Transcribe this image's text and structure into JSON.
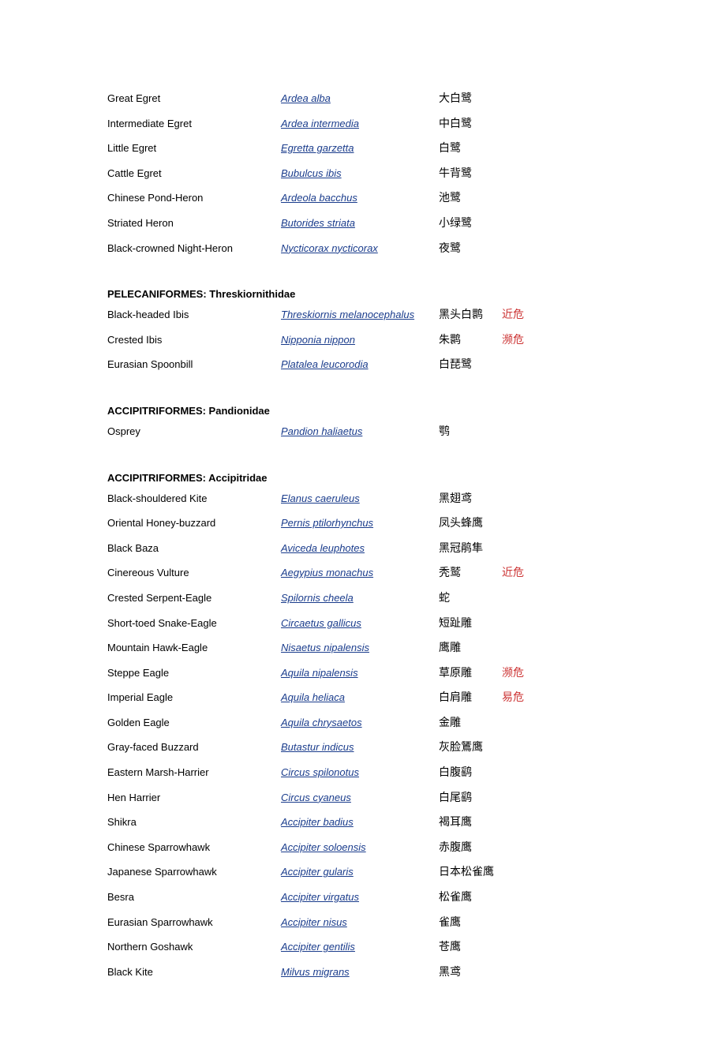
{
  "sections": [
    {
      "header": "",
      "rows": [
        {
          "common": "Great Egret",
          "sci": "Ardea alba",
          "cn": "大白鹭",
          "status": ""
        },
        {
          "common": "Intermediate Egret",
          "sci": "Ardea intermedia",
          "cn": "中白鹭",
          "status": ""
        },
        {
          "common": "Little Egret",
          "sci": "Egretta garzetta",
          "cn": "白鹭",
          "status": ""
        },
        {
          "common": "Cattle Egret",
          "sci": "Bubulcus ibis",
          "cn": "牛背鹭",
          "status": ""
        },
        {
          "common": "Chinese Pond-Heron",
          "sci": "Ardeola bacchus",
          "cn": "池鹭",
          "status": ""
        },
        {
          "common": "Striated Heron",
          "sci": "Butorides striata",
          "cn": "小绿鹭",
          "status": ""
        },
        {
          "common": "Black-crowned Night-Heron",
          "sci": "Nycticorax nycticorax",
          "cn": "夜鹭",
          "status": ""
        }
      ]
    },
    {
      "header": "PELECANIFORMES: Threskiornithidae",
      "rows": [
        {
          "common": "Black-headed Ibis",
          "sci": "Threskiornis melanocephalus",
          "cn": "黑头白鹮",
          "status": "近危"
        },
        {
          "common": "Crested Ibis",
          "sci": "Nipponia nippon",
          "cn": "朱鹮",
          "status": "濒危"
        },
        {
          "common": "Eurasian Spoonbill",
          "sci": "Platalea leucorodia",
          "cn": "白琵鹭",
          "status": ""
        }
      ]
    },
    {
      "header": "ACCIPITRIFORMES: Pandionidae",
      "rows": [
        {
          "common": "Osprey",
          "sci": "Pandion haliaetus",
          "cn": "鹗",
          "status": ""
        }
      ]
    },
    {
      "header": "ACCIPITRIFORMES: Accipitridae",
      "rows": [
        {
          "common": "Black-shouldered Kite",
          "sci": "Elanus caeruleus",
          "cn": "黑翅鸢",
          "status": ""
        },
        {
          "common": "Oriental Honey-buzzard",
          "sci": "Pernis ptilorhynchus",
          "cn": "凤头蜂鹰",
          "status": ""
        },
        {
          "common": "Black Baza",
          "sci": "Aviceda leuphotes",
          "cn": "黑冠鹃隼",
          "status": ""
        },
        {
          "common": "Cinereous Vulture",
          "sci": "Aegypius monachus",
          "cn": "秃鹫",
          "status": "近危"
        },
        {
          "common": "Crested Serpent-Eagle",
          "sci": "Spilornis cheela",
          "cn": "蛇",
          "status": ""
        },
        {
          "common": "Short-toed Snake-Eagle",
          "sci": "Circaetus gallicus",
          "cn": "短趾雕",
          "status": ""
        },
        {
          "common": "Mountain Hawk-Eagle",
          "sci": "Nisaetus nipalensis",
          "cn": "鹰雕",
          "status": ""
        },
        {
          "common": "Steppe Eagle",
          "sci": "Aquila nipalensis",
          "cn": "草原雕",
          "status": "濒危"
        },
        {
          "common": "Imperial Eagle",
          "sci": "Aquila heliaca",
          "cn": "白肩雕",
          "status": "易危"
        },
        {
          "common": "Golden Eagle",
          "sci": "Aquila chrysaetos",
          "cn": "金雕",
          "status": ""
        },
        {
          "common": "Gray-faced Buzzard",
          "sci": "Butastur indicus",
          "cn": "灰脸鵟鹰",
          "status": ""
        },
        {
          "common": "Eastern Marsh-Harrier",
          "sci": "Circus spilonotus",
          "cn": "白腹鹞",
          "status": ""
        },
        {
          "common": "Hen Harrier",
          "sci": "Circus cyaneus",
          "cn": "白尾鹞",
          "status": ""
        },
        {
          "common": "Shikra",
          "sci": "Accipiter badius",
          "cn": "褐耳鹰",
          "status": ""
        },
        {
          "common": "Chinese Sparrowhawk",
          "sci": "Accipiter soloensis",
          "cn": "赤腹鹰",
          "status": ""
        },
        {
          "common": "Japanese Sparrowhawk",
          "sci": "Accipiter gularis",
          "cn": "日本松雀鹰",
          "status": ""
        },
        {
          "common": "Besra",
          "sci": "Accipiter virgatus",
          "cn": "松雀鹰",
          "status": ""
        },
        {
          "common": "Eurasian Sparrowhawk",
          "sci": "Accipiter nisus",
          "cn": "雀鹰",
          "status": ""
        },
        {
          "common": "Northern Goshawk",
          "sci": "Accipiter gentilis",
          "cn": "苍鹰",
          "status": ""
        },
        {
          "common": "Black Kite",
          "sci": "Milvus migrans",
          "cn": "黑鸢",
          "status": ""
        }
      ]
    }
  ],
  "colors": {
    "link": "#1a3c8c",
    "status": "#cc3333",
    "text": "#000000",
    "bg": "#ffffff"
  }
}
